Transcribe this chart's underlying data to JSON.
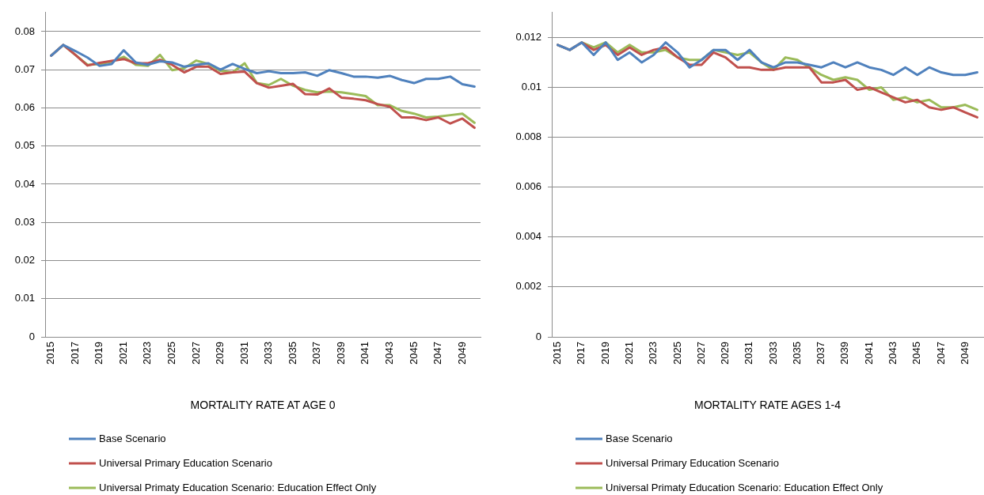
{
  "chart_data": [
    {
      "type": "line",
      "xlabel": "MORTALITY RATE AT AGE 0",
      "categories": [
        "2015",
        null,
        "2017",
        null,
        "2019",
        null,
        "2021",
        null,
        "2023",
        null,
        "2025",
        null,
        "2027",
        null,
        "2029",
        null,
        "2031",
        null,
        "2033",
        null,
        "2035",
        null,
        "2037",
        null,
        "2039",
        null,
        "2041",
        null,
        "2043",
        null,
        "2045",
        null,
        "2047",
        null,
        "2049",
        null
      ],
      "series": [
        {
          "name": "Base Scenario",
          "color": "#4f81bd",
          "values": [
            0.0737,
            0.0765,
            0.0749,
            0.0732,
            0.071,
            0.0715,
            0.0751,
            0.0719,
            0.0713,
            0.0722,
            0.0719,
            0.0708,
            0.0713,
            0.0717,
            0.07,
            0.0715,
            0.0702,
            0.0691,
            0.0696,
            0.0691,
            0.0691,
            0.0693,
            0.0684,
            0.0699,
            0.0691,
            0.0682,
            0.0682,
            0.0679,
            0.0684,
            0.0673,
            0.0665,
            0.0676,
            0.0676,
            0.0682,
            0.0662,
            0.0656
          ]
        },
        {
          "name": "Universal Primary Education Scenario",
          "color": "#c0504d",
          "values": [
            0.0737,
            0.0765,
            0.0739,
            0.0711,
            0.0718,
            0.0723,
            0.0728,
            0.0717,
            0.0717,
            0.0726,
            0.0713,
            0.0693,
            0.0708,
            0.0708,
            0.0689,
            0.0693,
            0.0695,
            0.0665,
            0.0653,
            0.0658,
            0.0663,
            0.0636,
            0.0635,
            0.0651,
            0.0627,
            0.0624,
            0.062,
            0.061,
            0.0603,
            0.0575,
            0.0575,
            0.0568,
            0.0575,
            0.0559,
            0.0572,
            0.0548
          ]
        },
        {
          "name": "Universal Primaty Education Scenario: Education Effect Only",
          "color": "#9bbb59",
          "values": [
            0.0737,
            0.0765,
            0.0739,
            0.0713,
            0.0715,
            0.0721,
            0.0734,
            0.0713,
            0.071,
            0.0739,
            0.0699,
            0.0704,
            0.0724,
            0.0715,
            0.0697,
            0.0693,
            0.0717,
            0.0665,
            0.066,
            0.0676,
            0.0658,
            0.0647,
            0.0641,
            0.0643,
            0.0641,
            0.0636,
            0.0631,
            0.0607,
            0.0607,
            0.0592,
            0.0585,
            0.0575,
            0.0577,
            0.0581,
            0.0585,
            0.0561
          ]
        }
      ],
      "ylim": [
        0,
        0.085
      ],
      "yticks": [
        0,
        0.01,
        0.02,
        0.03,
        0.04,
        0.05,
        0.06,
        0.07,
        0.08
      ],
      "grid": "y",
      "legend": "bottom"
    },
    {
      "type": "line",
      "xlabel": "MORTALITY RATE AGES 1-4",
      "categories": [
        "2015",
        null,
        "2017",
        null,
        "2019",
        null,
        "2021",
        null,
        "2023",
        null,
        "2025",
        null,
        "2027",
        null,
        "2029",
        null,
        "2031",
        null,
        "2033",
        null,
        "2035",
        null,
        "2037",
        null,
        "2039",
        null,
        "2041",
        null,
        "2043",
        null,
        "2045",
        null,
        "2047",
        null,
        "2049",
        null
      ],
      "series": [
        {
          "name": "Base Scenario",
          "color": "#4f81bd",
          "values": [
            0.0117,
            0.0115,
            0.0118,
            0.0113,
            0.0118,
            0.0111,
            0.0114,
            0.011,
            0.0113,
            0.0118,
            0.0114,
            0.0108,
            0.0111,
            0.0115,
            0.0115,
            0.0111,
            0.0115,
            0.011,
            0.0108,
            0.011,
            0.011,
            0.0109,
            0.0108,
            0.011,
            0.0108,
            0.011,
            0.0108,
            0.0107,
            0.0105,
            0.0108,
            0.0105,
            0.0108,
            0.0106,
            0.0105,
            0.0105,
            0.0106
          ]
        },
        {
          "name": "Universal Primary Education Scenario",
          "color": "#c0504d",
          "values": [
            0.0117,
            0.0115,
            0.0118,
            0.0115,
            0.0117,
            0.0113,
            0.0116,
            0.0113,
            0.0115,
            0.0116,
            0.0112,
            0.0109,
            0.0109,
            0.0114,
            0.0112,
            0.0108,
            0.0108,
            0.0107,
            0.0107,
            0.0108,
            0.0108,
            0.0108,
            0.0102,
            0.0102,
            0.0103,
            0.0099,
            0.01,
            0.0098,
            0.0096,
            0.0094,
            0.0095,
            0.0092,
            0.0091,
            0.0092,
            0.009,
            0.0088
          ]
        },
        {
          "name": "Universal Primaty Education Scenario: Education Effect Only",
          "color": "#9bbb59",
          "values": [
            0.0117,
            0.0115,
            0.0118,
            0.0116,
            0.0118,
            0.0114,
            0.0117,
            0.0114,
            0.0114,
            0.0115,
            0.0112,
            0.0111,
            0.0111,
            0.0115,
            0.0114,
            0.0113,
            0.0114,
            0.011,
            0.0107,
            0.0112,
            0.0111,
            0.0108,
            0.0105,
            0.0103,
            0.0104,
            0.0103,
            0.0099,
            0.01,
            0.0095,
            0.0096,
            0.0094,
            0.0095,
            0.0092,
            0.0092,
            0.0093,
            0.0091
          ]
        }
      ],
      "ylim": [
        0,
        0.013
      ],
      "yticks": [
        0,
        0.002,
        0.004,
        0.006,
        0.008,
        0.01,
        0.012
      ],
      "grid": "y",
      "legend": "bottom"
    }
  ]
}
